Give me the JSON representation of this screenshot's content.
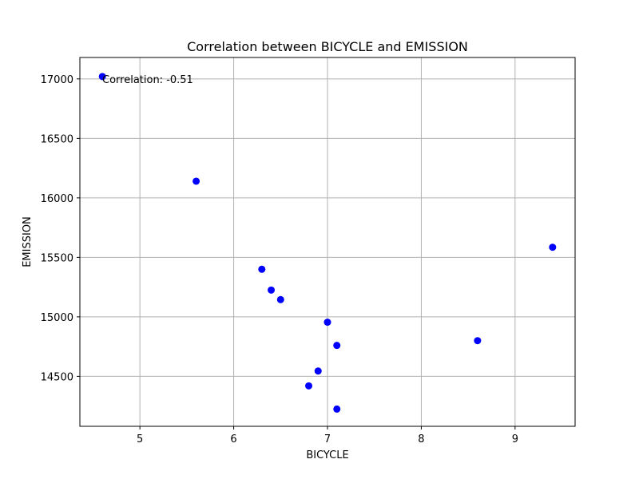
{
  "chart_data": {
    "type": "scatter",
    "title": "Correlation between BICYCLE and EMISSION",
    "xlabel": "BICYCLE",
    "ylabel": "EMISSION",
    "annotation": "Correlation: -0.51",
    "xlim": [
      4.36,
      9.64
    ],
    "ylim": [
      14080,
      17180
    ],
    "xticks": [
      5,
      6,
      7,
      8,
      9
    ],
    "yticks": [
      14500,
      15000,
      15500,
      16000,
      16500,
      17000
    ],
    "grid": true,
    "marker_color": "#0000ff",
    "points": [
      {
        "x": 4.6,
        "y": 17020
      },
      {
        "x": 5.6,
        "y": 16140
      },
      {
        "x": 6.3,
        "y": 15400
      },
      {
        "x": 6.4,
        "y": 15225
      },
      {
        "x": 6.5,
        "y": 15145
      },
      {
        "x": 7.0,
        "y": 14955
      },
      {
        "x": 7.1,
        "y": 14760
      },
      {
        "x": 6.9,
        "y": 14545
      },
      {
        "x": 6.8,
        "y": 14420
      },
      {
        "x": 7.1,
        "y": 14225
      },
      {
        "x": 8.6,
        "y": 14800
      },
      {
        "x": 9.4,
        "y": 15585
      }
    ]
  }
}
